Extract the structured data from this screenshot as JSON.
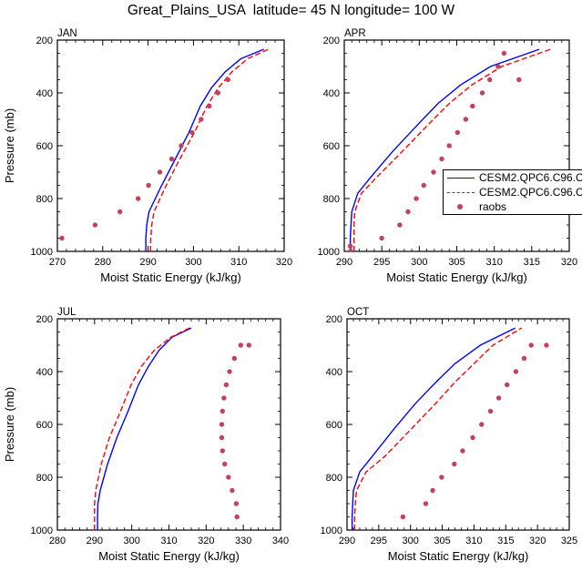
{
  "title": "Great_Plains_USA  latitude= 45 N longitude= 100 W",
  "colors": {
    "series1": "#0000ff",
    "series2": "#ff0000",
    "raobs": "#c4415c"
  },
  "legend": {
    "entries": [
      {
        "name": "CESM2.QPC6.C96.C",
        "style": "solid"
      },
      {
        "name": "CESM2.QPC6.C96.C",
        "style": "dashed"
      },
      {
        "name": "raobs",
        "style": "dots"
      }
    ]
  },
  "chart_data": [
    {
      "type": "line",
      "panel_label": "JAN",
      "xlabel": "Moist Static Energy (kJ/kg)",
      "ylabel": "Pressure (mb)",
      "xlim": [
        270,
        320
      ],
      "ylim": [
        1000,
        200
      ],
      "xticks": [
        270,
        280,
        290,
        300,
        310,
        320
      ],
      "yticks": [
        200,
        400,
        600,
        800,
        1000
      ],
      "series": [
        {
          "name": "CESM2.QPC6.C96.C",
          "style": "solid",
          "x": [
            289.5,
            289.5,
            289.7,
            290.2,
            293,
            296,
            299,
            301.5,
            304,
            307,
            310.5,
            315.5
          ],
          "y": [
            1000,
            950,
            900,
            850,
            750,
            650,
            550,
            450,
            380,
            320,
            270,
            235
          ]
        },
        {
          "name": "CESM2.QPC6.C96.C",
          "style": "dashed",
          "x": [
            290.5,
            290.6,
            290.8,
            291.3,
            294,
            297,
            300.2,
            303,
            305.5,
            308.5,
            312,
            316.5
          ],
          "y": [
            1000,
            950,
            900,
            850,
            750,
            650,
            550,
            450,
            380,
            320,
            270,
            235
          ]
        },
        {
          "name": "raobs",
          "style": "dots",
          "x": [
            271,
            278.3,
            283.8,
            287.8,
            290.1,
            292.6,
            295.2,
            297.3,
            299.7,
            301.7,
            303.5,
            305.4,
            307.6
          ],
          "y": [
            950,
            900,
            850,
            800,
            750,
            700,
            650,
            600,
            550,
            500,
            450,
            400,
            350
          ]
        }
      ]
    },
    {
      "type": "line",
      "panel_label": "APR",
      "xlabel": "Moist Static Energy (kJ/kg)",
      "ylabel": "Pressure (mb)",
      "xlim": [
        290,
        320
      ],
      "ylim": [
        1000,
        200
      ],
      "xticks": [
        290,
        295,
        300,
        305,
        310,
        315,
        320
      ],
      "yticks": [
        200,
        400,
        600,
        800,
        1000
      ],
      "series": [
        {
          "name": "CESM2.QPC6.C96.C",
          "style": "solid",
          "x": [
            290.8,
            290.8,
            290.9,
            291,
            291.8,
            293.5,
            296.5,
            299.8,
            302.5,
            305.5,
            309.5,
            316
          ],
          "y": [
            1000,
            950,
            900,
            850,
            780,
            720,
            620,
            520,
            440,
            370,
            300,
            235
          ]
        },
        {
          "name": "CESM2.QPC6.C96.C",
          "style": "dashed",
          "x": [
            291.3,
            291.3,
            291.3,
            291.4,
            292.3,
            294.3,
            297.8,
            301.2,
            304,
            307,
            311,
            317.5
          ],
          "y": [
            1000,
            950,
            900,
            850,
            780,
            720,
            620,
            520,
            440,
            370,
            300,
            235
          ]
        },
        {
          "name": "raobs",
          "style": "dots",
          "x": [
            290.8,
            290.8,
            295,
            297.4,
            298.5,
            299.6,
            300.6,
            301.9,
            303,
            304,
            305.1,
            306.2,
            307.1,
            308.4,
            309.4,
            310.5,
            311.3,
            313.3
          ],
          "y": [
            1000,
            980,
            950,
            900,
            850,
            800,
            750,
            700,
            650,
            600,
            550,
            500,
            450,
            400,
            350,
            300,
            250,
            350
          ]
        }
      ]
    },
    {
      "type": "line",
      "panel_label": "JUL",
      "xlabel": "Moist Static Energy (kJ/kg)",
      "ylabel": "Pressure (mb)",
      "xlim": [
        280,
        340
      ],
      "ylim": [
        1000,
        200
      ],
      "xticks": [
        280,
        290,
        300,
        310,
        320,
        330,
        340
      ],
      "yticks": [
        200,
        400,
        600,
        800,
        1000
      ],
      "series": [
        {
          "name": "CESM2.QPC6.C96.C",
          "style": "solid",
          "x": [
            290.8,
            290.8,
            290.9,
            291.5,
            293.5,
            296,
            299,
            301.8,
            304.5,
            307.3,
            310.8,
            316
          ],
          "y": [
            1000,
            950,
            900,
            850,
            750,
            650,
            550,
            450,
            380,
            320,
            270,
            235
          ]
        },
        {
          "name": "CESM2.QPC6.C96.C",
          "style": "dashed",
          "x": [
            290,
            290,
            290,
            290.3,
            291.8,
            294,
            297,
            299.8,
            302.6,
            306,
            310.5,
            315.5
          ],
          "y": [
            1000,
            950,
            900,
            850,
            750,
            650,
            550,
            450,
            380,
            320,
            270,
            235
          ]
        },
        {
          "name": "raobs",
          "style": "dots",
          "x": [
            328.3,
            328.1,
            327,
            326,
            325,
            324.4,
            324.2,
            324.2,
            324.4,
            324.8,
            325.4,
            326.3,
            327.6,
            329.3,
            331.5
          ],
          "y": [
            950,
            900,
            850,
            800,
            750,
            700,
            650,
            600,
            550,
            500,
            450,
            400,
            350,
            300,
            300
          ]
        }
      ]
    },
    {
      "type": "line",
      "panel_label": "OCT",
      "xlabel": "Moist Static Energy (kJ/kg)",
      "ylabel": "Pressure (mb)",
      "xlim": [
        290,
        325
      ],
      "ylim": [
        1000,
        200
      ],
      "xticks": [
        290,
        295,
        300,
        305,
        310,
        315,
        320,
        325
      ],
      "yticks": [
        200,
        400,
        600,
        800,
        1000
      ],
      "series": [
        {
          "name": "CESM2.QPC6.C96.C",
          "style": "solid",
          "x": [
            290.8,
            290.8,
            290.9,
            291,
            292,
            294,
            297.3,
            300.8,
            304,
            307,
            311,
            316.5
          ],
          "y": [
            1000,
            950,
            900,
            850,
            780,
            720,
            620,
            520,
            440,
            370,
            300,
            235
          ]
        },
        {
          "name": "CESM2.QPC6.C96.C",
          "style": "dashed",
          "x": [
            291.2,
            291.2,
            291.3,
            291.5,
            293,
            296,
            300,
            304,
            307,
            310,
            313,
            317.5
          ],
          "y": [
            1000,
            950,
            900,
            850,
            780,
            720,
            620,
            520,
            440,
            370,
            300,
            235
          ]
        },
        {
          "name": "raobs",
          "style": "dots",
          "x": [
            298.8,
            302.4,
            303.5,
            304.9,
            306.9,
            308.2,
            309.8,
            311.2,
            312.6,
            313.9,
            315.2,
            316.6,
            317.9,
            319,
            321.4
          ],
          "y": [
            950,
            900,
            850,
            800,
            750,
            700,
            650,
            600,
            550,
            500,
            450,
            400,
            350,
            300,
            300
          ]
        }
      ]
    }
  ]
}
